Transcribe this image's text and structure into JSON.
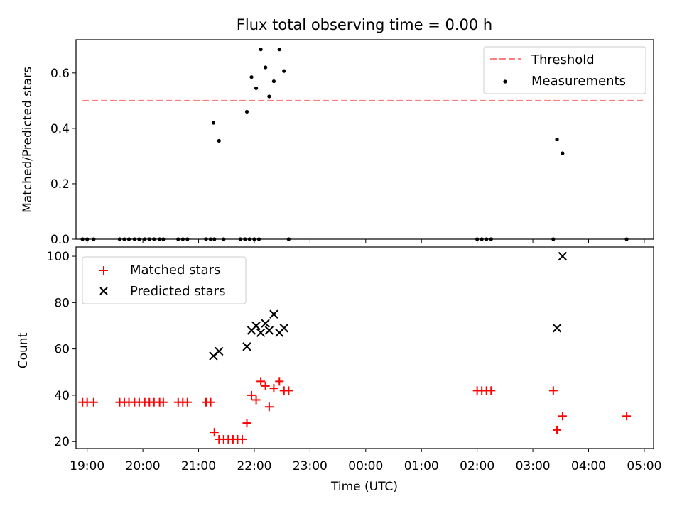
{
  "chart_data": [
    {
      "type": "scatter",
      "title": "Flux total observing time = 0.00 h",
      "xlabel": "",
      "ylabel": "Matched/Predicted stars",
      "xlim": [
        "18:48",
        "05:10"
      ],
      "ylim": [
        0,
        0.72
      ],
      "yticks": [
        0.0,
        0.2,
        0.4,
        0.6
      ],
      "ytick_labels": [
        "0.0",
        "0.2",
        "0.4",
        "0.6"
      ],
      "legend_position": "top-right",
      "threshold": {
        "name": "Threshold",
        "color": "#ff7f7f",
        "style": "dashed",
        "value": 0.5,
        "x_range": [
          "18:55",
          "05:00"
        ]
      },
      "series": [
        {
          "name": "Measurements",
          "color": "#000000",
          "marker": "dot",
          "points": [
            {
              "x": "18:55",
              "y": 0.0
            },
            {
              "x": "19:00",
              "y": 0.0
            },
            {
              "x": "19:07",
              "y": 0.0
            },
            {
              "x": "19:35",
              "y": 0.0
            },
            {
              "x": "19:40",
              "y": 0.0
            },
            {
              "x": "19:45",
              "y": 0.0
            },
            {
              "x": "19:51",
              "y": 0.0
            },
            {
              "x": "19:56",
              "y": 0.0
            },
            {
              "x": "20:02",
              "y": 0.0
            },
            {
              "x": "20:07",
              "y": 0.0
            },
            {
              "x": "20:12",
              "y": 0.0
            },
            {
              "x": "20:18",
              "y": 0.0
            },
            {
              "x": "20:22",
              "y": 0.0
            },
            {
              "x": "20:38",
              "y": 0.0
            },
            {
              "x": "20:43",
              "y": 0.0
            },
            {
              "x": "20:48",
              "y": 0.0
            },
            {
              "x": "21:08",
              "y": 0.0
            },
            {
              "x": "21:13",
              "y": 0.0
            },
            {
              "x": "21:17",
              "y": 0.0
            },
            {
              "x": "21:27",
              "y": 0.0
            },
            {
              "x": "21:45",
              "y": 0.0
            },
            {
              "x": "21:50",
              "y": 0.0
            },
            {
              "x": "21:55",
              "y": 0.0
            },
            {
              "x": "22:00",
              "y": 0.0
            },
            {
              "x": "22:05",
              "y": 0.0
            },
            {
              "x": "22:37",
              "y": 0.0
            },
            {
              "x": "21:16",
              "y": 0.42
            },
            {
              "x": "21:22",
              "y": 0.355
            },
            {
              "x": "21:52",
              "y": 0.46
            },
            {
              "x": "21:57",
              "y": 0.585
            },
            {
              "x": "22:02",
              "y": 0.545
            },
            {
              "x": "22:07",
              "y": 0.685
            },
            {
              "x": "22:12",
              "y": 0.62
            },
            {
              "x": "22:16",
              "y": 0.515
            },
            {
              "x": "22:21",
              "y": 0.57
            },
            {
              "x": "22:27",
              "y": 0.685
            },
            {
              "x": "22:32",
              "y": 0.607
            },
            {
              "x": "02:00",
              "y": 0.0
            },
            {
              "x": "02:05",
              "y": 0.0
            },
            {
              "x": "02:10",
              "y": 0.0
            },
            {
              "x": "02:15",
              "y": 0.0
            },
            {
              "x": "03:22",
              "y": 0.0
            },
            {
              "x": "03:26",
              "y": 0.36
            },
            {
              "x": "03:32",
              "y": 0.31
            },
            {
              "x": "04:41",
              "y": 0.0
            }
          ]
        }
      ]
    },
    {
      "type": "scatter",
      "title": "",
      "xlabel": "Time (UTC)",
      "ylabel": "Count",
      "xlim": [
        "18:48",
        "05:10"
      ],
      "ylim": [
        17,
        104
      ],
      "yticks": [
        20,
        40,
        60,
        80,
        100
      ],
      "ytick_labels": [
        "20",
        "40",
        "60",
        "80",
        "100"
      ],
      "xticks": [
        "19:00",
        "20:00",
        "21:00",
        "22:00",
        "23:00",
        "00:00",
        "01:00",
        "02:00",
        "03:00",
        "04:00",
        "05:00"
      ],
      "legend_position": "top-left",
      "series": [
        {
          "name": "Matched stars",
          "color": "#ff0000",
          "marker": "plus",
          "points": [
            {
              "x": "18:55",
              "y": 37
            },
            {
              "x": "19:00",
              "y": 37
            },
            {
              "x": "19:07",
              "y": 37
            },
            {
              "x": "19:35",
              "y": 37
            },
            {
              "x": "19:40",
              "y": 37
            },
            {
              "x": "19:45",
              "y": 37
            },
            {
              "x": "19:51",
              "y": 37
            },
            {
              "x": "19:56",
              "y": 37
            },
            {
              "x": "20:02",
              "y": 37
            },
            {
              "x": "20:07",
              "y": 37
            },
            {
              "x": "20:12",
              "y": 37
            },
            {
              "x": "20:18",
              "y": 37
            },
            {
              "x": "20:22",
              "y": 37
            },
            {
              "x": "20:38",
              "y": 37
            },
            {
              "x": "20:43",
              "y": 37
            },
            {
              "x": "20:48",
              "y": 37
            },
            {
              "x": "21:08",
              "y": 37
            },
            {
              "x": "21:13",
              "y": 37
            },
            {
              "x": "21:17",
              "y": 24
            },
            {
              "x": "21:22",
              "y": 21
            },
            {
              "x": "21:27",
              "y": 21
            },
            {
              "x": "21:32",
              "y": 21
            },
            {
              "x": "21:37",
              "y": 21
            },
            {
              "x": "21:42",
              "y": 21
            },
            {
              "x": "21:47",
              "y": 21
            },
            {
              "x": "21:52",
              "y": 28
            },
            {
              "x": "21:57",
              "y": 40
            },
            {
              "x": "22:02",
              "y": 38
            },
            {
              "x": "22:07",
              "y": 46
            },
            {
              "x": "22:12",
              "y": 44
            },
            {
              "x": "22:16",
              "y": 35
            },
            {
              "x": "22:21",
              "y": 43
            },
            {
              "x": "22:27",
              "y": 46
            },
            {
              "x": "22:32",
              "y": 42
            },
            {
              "x": "22:37",
              "y": 42
            },
            {
              "x": "02:00",
              "y": 42
            },
            {
              "x": "02:05",
              "y": 42
            },
            {
              "x": "02:10",
              "y": 42
            },
            {
              "x": "02:15",
              "y": 42
            },
            {
              "x": "03:22",
              "y": 42
            },
            {
              "x": "03:26",
              "y": 25
            },
            {
              "x": "03:32",
              "y": 31
            },
            {
              "x": "04:41",
              "y": 31
            }
          ]
        },
        {
          "name": "Predicted stars",
          "color": "#000000",
          "marker": "x",
          "points": [
            {
              "x": "21:16",
              "y": 57
            },
            {
              "x": "21:22",
              "y": 59
            },
            {
              "x": "21:52",
              "y": 61
            },
            {
              "x": "21:57",
              "y": 68
            },
            {
              "x": "22:02",
              "y": 70
            },
            {
              "x": "22:07",
              "y": 67
            },
            {
              "x": "22:12",
              "y": 71
            },
            {
              "x": "22:16",
              "y": 68
            },
            {
              "x": "22:21",
              "y": 75
            },
            {
              "x": "22:27",
              "y": 67
            },
            {
              "x": "22:32",
              "y": 69
            },
            {
              "x": "03:26",
              "y": 69
            },
            {
              "x": "03:32",
              "y": 100
            }
          ]
        }
      ]
    }
  ]
}
